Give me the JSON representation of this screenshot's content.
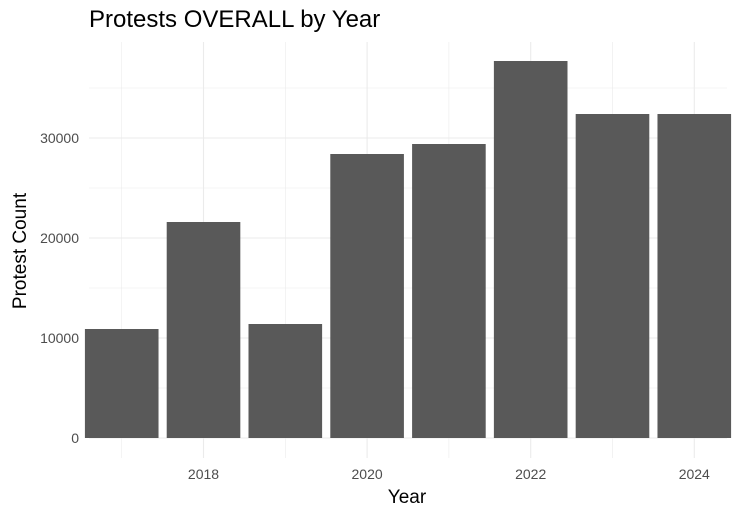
{
  "chart_data": {
    "type": "bar",
    "title": "Protests OVERALL by Year",
    "xlabel": "Year",
    "ylabel": "Protest Count",
    "categories": [
      2017,
      2018,
      2019,
      2020,
      2021,
      2022,
      2023,
      2024
    ],
    "values": [
      10900,
      21600,
      11400,
      28400,
      29400,
      37700,
      32400,
      32400
    ],
    "xlim": [
      2016.6,
      2024.4
    ],
    "ylim": [
      0,
      40000
    ],
    "x_ticks": [
      2018,
      2020,
      2022,
      2024
    ],
    "y_ticks": [
      0,
      10000,
      20000,
      30000
    ],
    "grid": true,
    "bar_color": "#595959",
    "grid_color": "#ebebeb",
    "background": "#ffffff"
  }
}
